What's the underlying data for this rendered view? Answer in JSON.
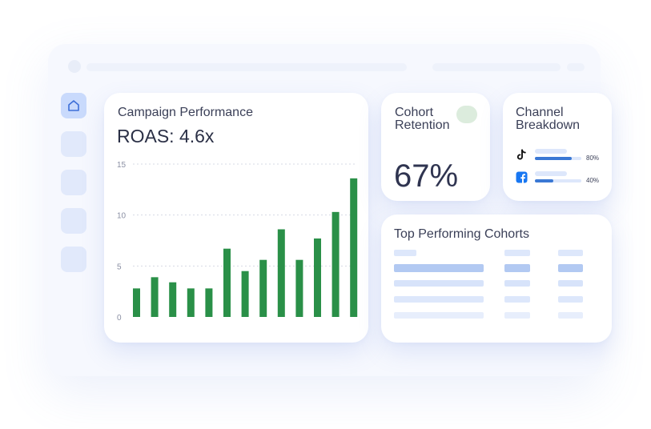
{
  "colors": {
    "accent": "#3a78d4",
    "bar_green": "#2a9048",
    "skeleton": "#dfe8fb",
    "skeleton_strong": "#b2c9f2"
  },
  "sidebar": {
    "items": [
      {
        "icon": "home-icon",
        "active": true
      },
      {
        "icon": "nav-placeholder",
        "active": false
      },
      {
        "icon": "nav-placeholder",
        "active": false
      },
      {
        "icon": "nav-placeholder",
        "active": false
      },
      {
        "icon": "nav-placeholder",
        "active": false
      }
    ]
  },
  "campaign": {
    "title": "Campaign Performance",
    "metric": "ROAS: 4.6x"
  },
  "chart_data": {
    "type": "bar",
    "title": "",
    "xlabel": "",
    "ylabel": "",
    "ylim": [
      0,
      15
    ],
    "yticks": [
      "0",
      "5",
      "10",
      "15"
    ],
    "grid": true,
    "values": [
      2.8,
      3.9,
      3.4,
      2.8,
      2.8,
      6.7,
      4.5,
      5.6,
      8.6,
      5.6,
      7.7,
      10.3,
      13.6
    ]
  },
  "retention": {
    "title": "Cohort Retention",
    "value": "67%"
  },
  "channel": {
    "title": "Channel Breakdown",
    "rows": [
      {
        "icon": "tiktok-icon",
        "pct_label": "80%",
        "pct": 0.8
      },
      {
        "icon": "facebook-icon",
        "pct_label": "40%",
        "pct": 0.4
      }
    ]
  },
  "cohorts": {
    "title": "Top Performing Cohorts"
  }
}
